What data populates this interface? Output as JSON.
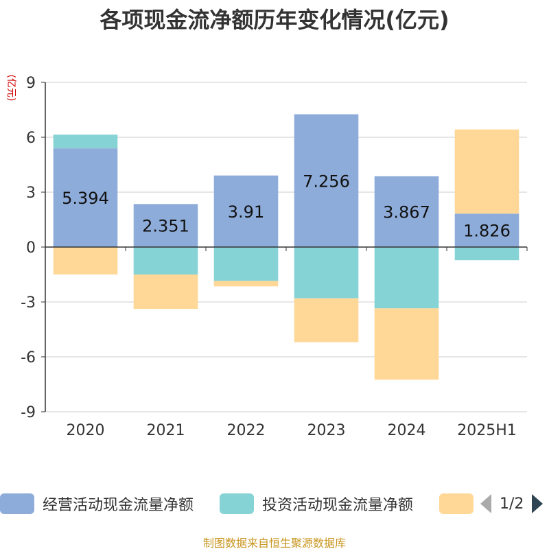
{
  "title": "各项现金流净额历年变化情况(亿元)",
  "y_unit": "(亿元)",
  "source": "制图数据来自恒生聚源数据库",
  "legend": {
    "items": [
      {
        "label": "经营活动现金流量净额",
        "color": "#8eacd9"
      },
      {
        "label": "投资活动现金流量净额",
        "color": "#86d3d6"
      },
      {
        "label": "",
        "color": "#ffd898"
      }
    ],
    "pager": {
      "text": "1/2"
    }
  },
  "chart_data": {
    "type": "bar",
    "stacked": true,
    "categories": [
      "2020",
      "2021",
      "2022",
      "2023",
      "2024",
      "2025H1"
    ],
    "ylim": [
      -9,
      9
    ],
    "yticks": [
      9,
      6,
      3,
      0,
      -3,
      -6,
      -9
    ],
    "grid": true,
    "legend_position": "bottom",
    "series": [
      {
        "name": "经营活动现金流量净额",
        "color": "#8eacd9",
        "values": [
          5.394,
          2.351,
          3.91,
          7.256,
          3.867,
          1.826
        ],
        "labels": [
          "5.394",
          "2.351",
          "3.91",
          "7.256",
          "3.867",
          "1.826"
        ]
      },
      {
        "name": "投资活动现金流量净额",
        "color": "#86d3d6",
        "values": [
          0.75,
          -1.5,
          -1.85,
          -2.8,
          -3.35,
          -0.72
        ]
      },
      {
        "color": "#ffd898",
        "values": [
          -1.5,
          -1.88,
          -0.3,
          -2.4,
          -3.9,
          4.6
        ]
      }
    ]
  }
}
